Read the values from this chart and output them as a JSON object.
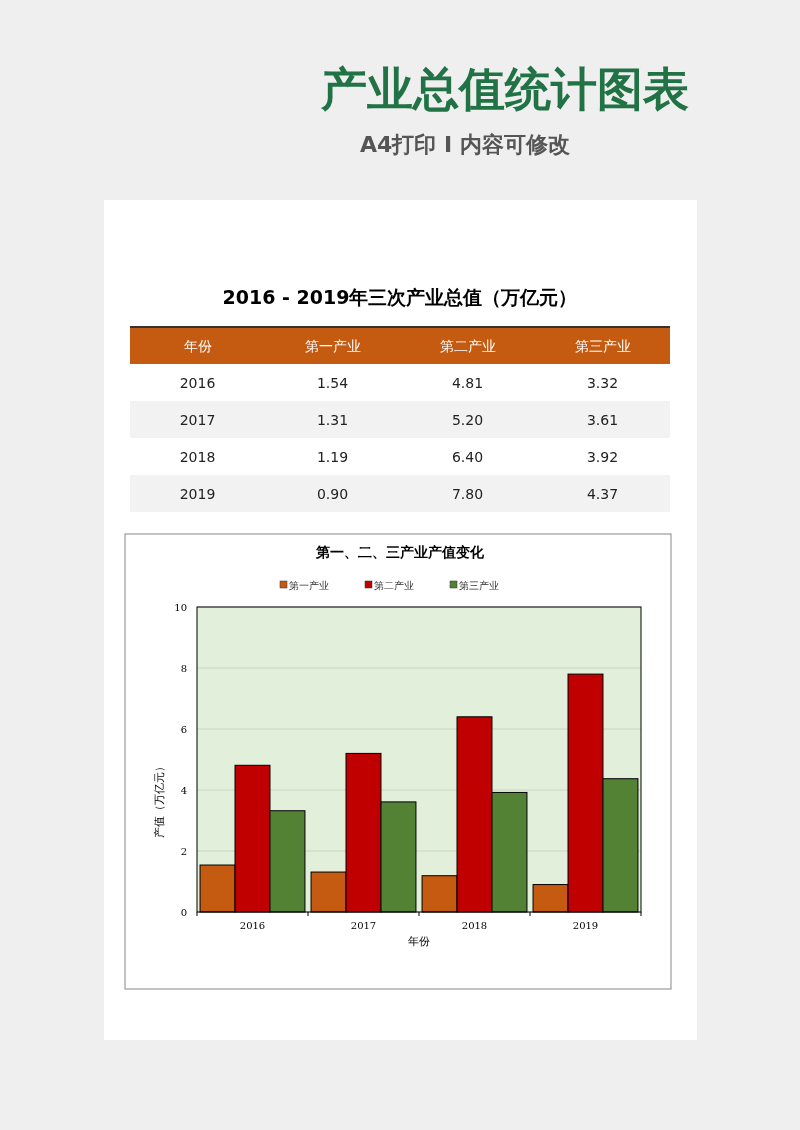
{
  "chart_data": [
    {
      "type": "heatmap",
      "title": "2016 - 2019年三次产业总值（万亿元）",
      "annotations": [
        "产业总值统计图表",
        "A4打印 I 内容可修改"
      ],
      "ylabel": "年份",
      "categories": [
        "第一产业",
        "第二产业",
        "第三产业"
      ],
      "y_categories": [
        "2016",
        "2017",
        "2018",
        "2019"
      ],
      "cells": [
        [
          1.54,
          4.81,
          3.32
        ],
        [
          1.31,
          5.2,
          3.61
        ],
        [
          1.19,
          6.4,
          3.92
        ],
        [
          0.9,
          7.8,
          4.37
        ]
      ],
      "cell_labels": [
        [
          "1.54",
          "4.81",
          "3.32"
        ],
        [
          "1.31",
          "5.20",
          "3.61"
        ],
        [
          "1.19",
          "6.40",
          "3.92"
        ],
        [
          "0.90",
          "7.80",
          "4.37"
        ]
      ]
    },
    {
      "type": "bar",
      "title": "第一、二、三产业产值变化",
      "xlabel": "年份",
      "ylabel": "产值（万亿元）",
      "categories": [
        "2016",
        "2017",
        "2018",
        "2019"
      ],
      "series": [
        {
          "name": "第一产业",
          "color": "#c55a11",
          "values": [
            1.54,
            1.31,
            1.19,
            0.9
          ]
        },
        {
          "name": "第二产业",
          "color": "#c00000",
          "values": [
            4.81,
            5.2,
            6.4,
            7.8
          ]
        },
        {
          "name": "第三产业",
          "color": "#548235",
          "values": [
            3.32,
            3.61,
            3.92,
            4.37
          ]
        }
      ],
      "ylim": [
        0,
        10
      ],
      "yticks": [
        0,
        2,
        4,
        6,
        8,
        10
      ],
      "grid": "y",
      "legend": "top"
    }
  ]
}
